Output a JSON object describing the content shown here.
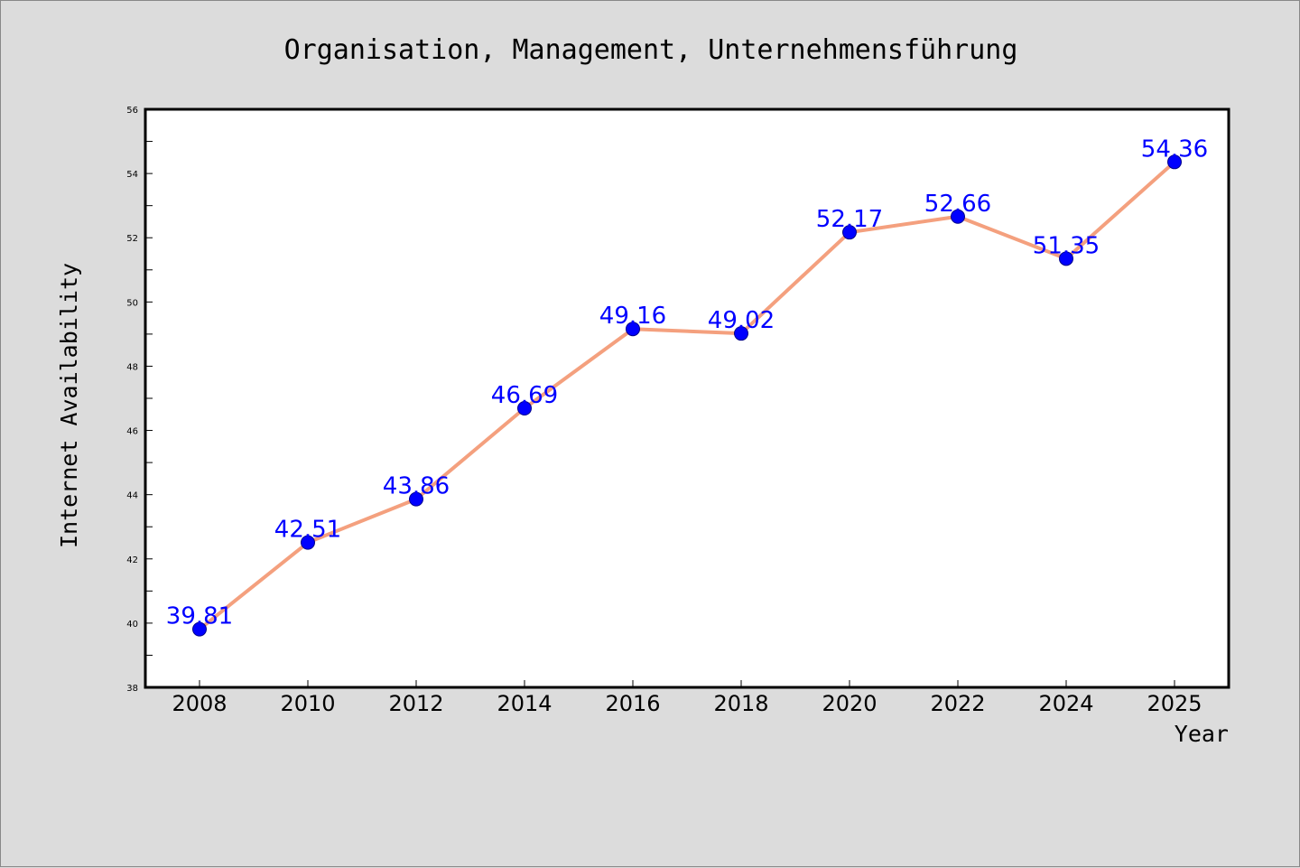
{
  "chart_data": {
    "type": "line",
    "title": "Organisation, Management, Unternehmensführung",
    "xlabel": "Year",
    "ylabel": "Internet Availability",
    "ylim": [
      38,
      56
    ],
    "y_major_ticks": [
      38,
      40,
      42,
      44,
      46,
      48,
      50,
      52,
      54,
      56
    ],
    "grid": false,
    "categories": [
      "2008",
      "2010",
      "2012",
      "2014",
      "2016",
      "2018",
      "2020",
      "2022",
      "2024",
      "2025"
    ],
    "values": [
      39.81,
      42.51,
      43.86,
      46.69,
      49.16,
      49.02,
      52.17,
      52.66,
      51.35,
      54.36
    ],
    "data_labels": [
      "39.81",
      "42.51",
      "43.86",
      "46.69",
      "49.16",
      "49.02",
      "52.17",
      "52.66",
      "51.35",
      "54.36"
    ],
    "colors": {
      "line": "#f4a07e",
      "marker": "#0000ff",
      "label": "#0000ff",
      "plot_background": "#ffffff",
      "page_background": "#dcdcdc"
    }
  }
}
